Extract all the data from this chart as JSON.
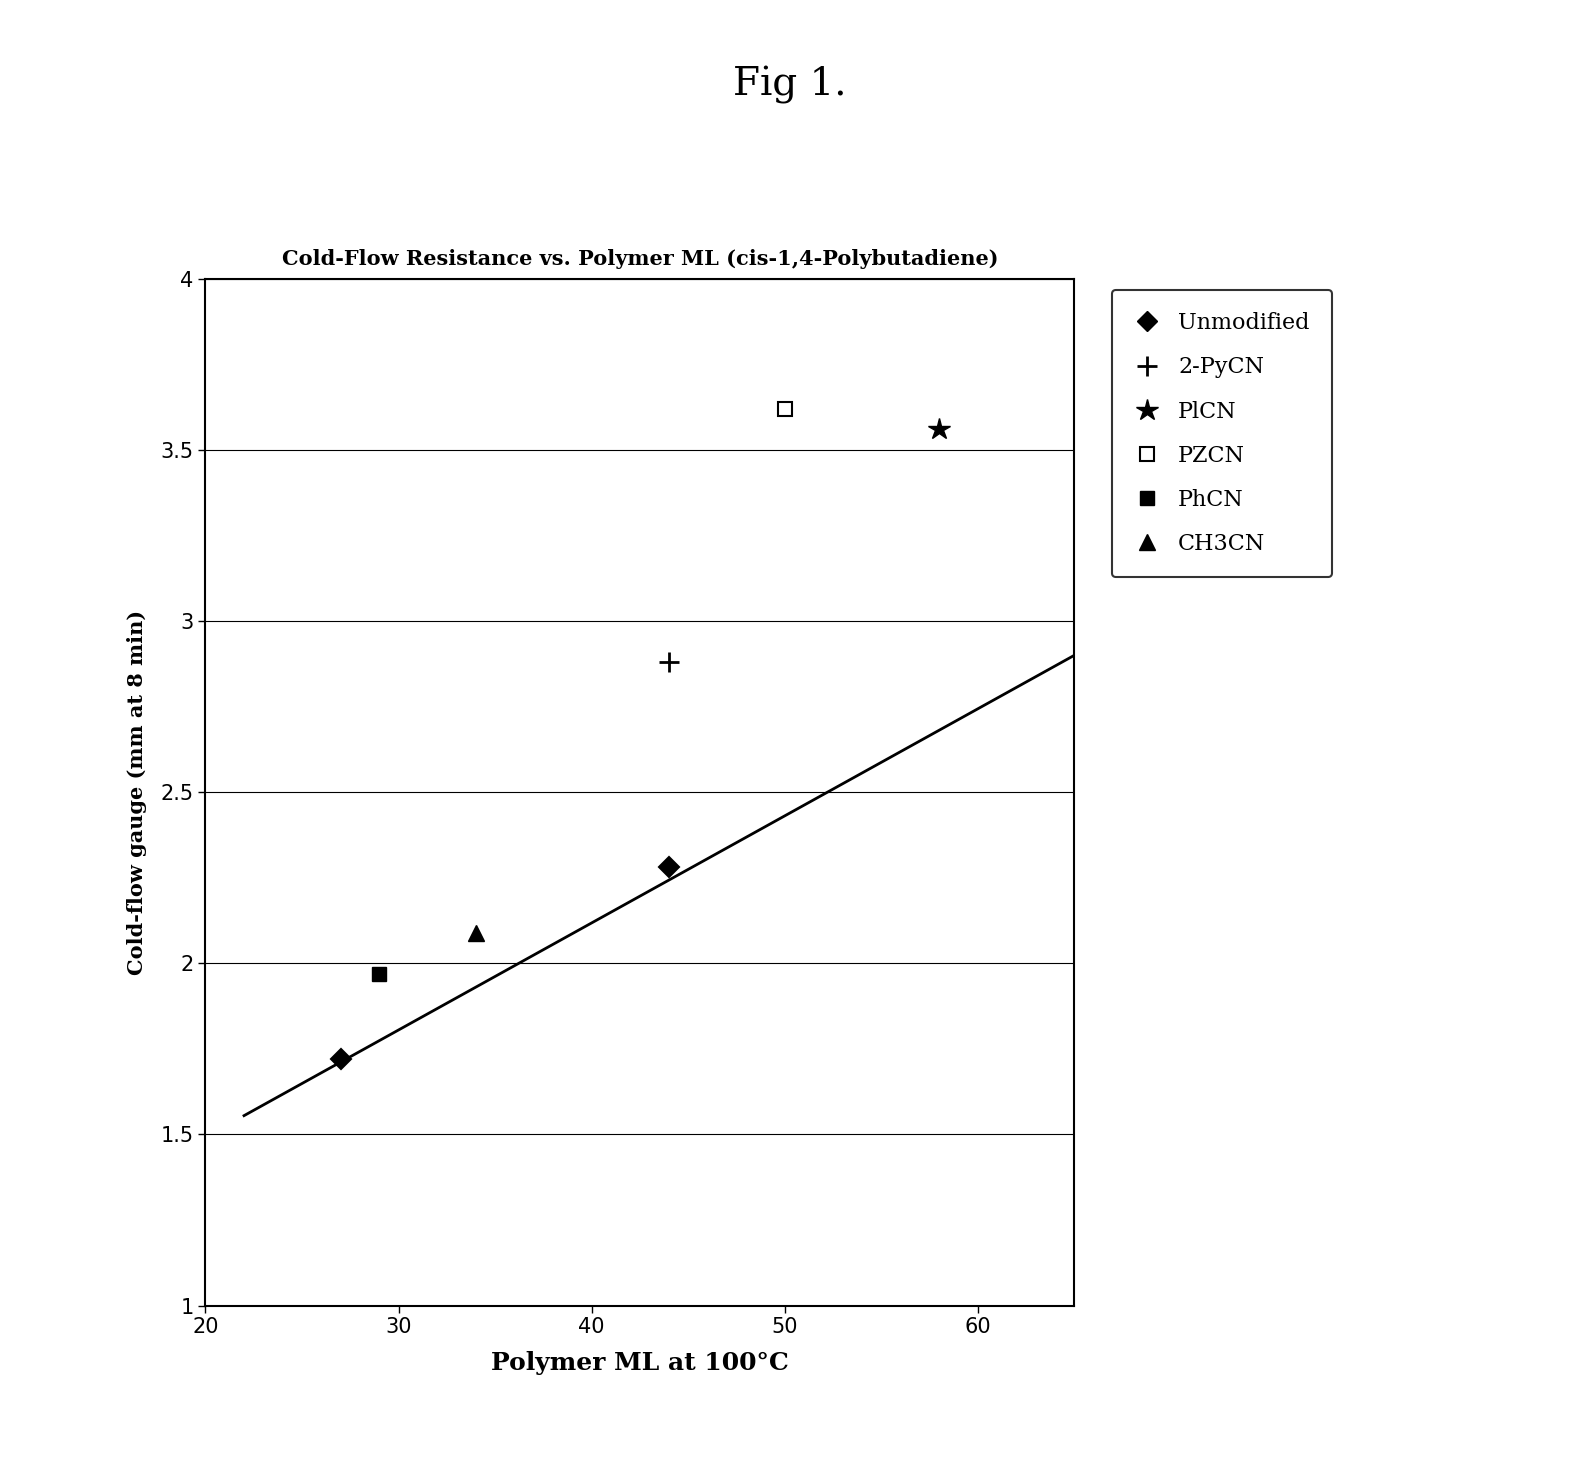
{
  "title_fig": "Fig 1.",
  "chart_title": "Cold-Flow Resistance vs. Polymer ML (cis-1,4-Polybutadiene)",
  "xlabel": "Polymer ML at 100°C",
  "ylabel": "Cold-flow gauge (mm at 8 min)",
  "xlim": [
    20,
    65
  ],
  "ylim": [
    1,
    4
  ],
  "xticks": [
    20,
    30,
    40,
    50,
    60
  ],
  "yticks": [
    1,
    1.5,
    2,
    2.5,
    3,
    3.5,
    4
  ],
  "background_color": "#ffffff",
  "series": [
    {
      "name": "Unmodified",
      "x": [
        27,
        44
      ],
      "y": [
        1.72,
        2.28
      ],
      "marker": "D",
      "markersize": 10,
      "color": "#000000",
      "fillstyle": "full"
    },
    {
      "name": "2-PyCN",
      "x": [
        44
      ],
      "y": [
        2.88
      ],
      "marker": "+",
      "markersize": 14,
      "markeredgewidth": 2.0,
      "color": "#000000",
      "fillstyle": "full"
    },
    {
      "name": "PlCN",
      "x": [
        58
      ],
      "y": [
        3.56
      ],
      "marker": "*",
      "markersize": 16,
      "markeredgewidth": 1.0,
      "color": "#000000",
      "fillstyle": "full"
    },
    {
      "name": "PZCN",
      "x": [
        50
      ],
      "y": [
        3.62
      ],
      "marker": "s",
      "markersize": 10,
      "markeredgewidth": 1.5,
      "color": "#000000",
      "fillstyle": "none"
    },
    {
      "name": "PhCN",
      "x": [
        29
      ],
      "y": [
        1.97
      ],
      "marker": "s",
      "markersize": 10,
      "markeredgewidth": 1.0,
      "color": "#000000",
      "fillstyle": "full"
    },
    {
      "name": "CH3CN",
      "x": [
        34
      ],
      "y": [
        2.09
      ],
      "marker": "^",
      "markersize": 11,
      "markeredgewidth": 1.0,
      "color": "#000000",
      "fillstyle": "full"
    }
  ],
  "trendline": {
    "x": [
      22,
      65
    ],
    "y": [
      1.555,
      2.9
    ],
    "color": "#000000",
    "linewidth": 2.0
  },
  "legend_labels": [
    "Unmodified",
    "2-PyCN",
    "PlCN",
    "PZCN",
    "PhCN",
    "CH3CN"
  ],
  "legend_markers": [
    "D",
    "+",
    "*",
    "s",
    "s",
    "^"
  ],
  "legend_fillstyles": [
    "full",
    "full",
    "full",
    "none",
    "full",
    "full"
  ],
  "legend_markersizes": [
    10,
    14,
    16,
    10,
    10,
    11
  ],
  "legend_markeredgewidths": [
    1.0,
    2.0,
    1.0,
    1.5,
    1.0,
    1.0
  ]
}
